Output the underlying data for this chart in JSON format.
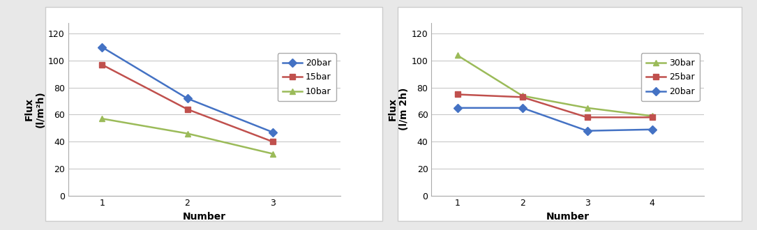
{
  "left": {
    "series": [
      {
        "label": "20bar",
        "x": [
          1,
          2,
          3
        ],
        "y": [
          110,
          72,
          47
        ],
        "color": "#4472C4",
        "marker": "D"
      },
      {
        "label": "15bar",
        "x": [
          1,
          2,
          3
        ],
        "y": [
          97,
          64,
          40
        ],
        "color": "#C0504D",
        "marker": "s"
      },
      {
        "label": "10bar",
        "x": [
          1,
          2,
          3
        ],
        "y": [
          57,
          46,
          31
        ],
        "color": "#9BBB59",
        "marker": "^"
      }
    ],
    "xlabel": "Number",
    "ylabel": "Flux\n(l/m²h)",
    "xlim": [
      0.6,
      3.8
    ],
    "ylim": [
      0,
      128
    ],
    "yticks": [
      0,
      20,
      40,
      60,
      80,
      100,
      120
    ],
    "xticks": [
      1,
      2,
      3
    ]
  },
  "right": {
    "series": [
      {
        "label": "30bar",
        "x": [
          1,
          2,
          3,
          4
        ],
        "y": [
          104,
          74,
          65,
          59
        ],
        "color": "#9BBB59",
        "marker": "^"
      },
      {
        "label": "25bar",
        "x": [
          1,
          2,
          3,
          4
        ],
        "y": [
          75,
          73,
          58,
          58
        ],
        "color": "#C0504D",
        "marker": "s"
      },
      {
        "label": "20bar",
        "x": [
          1,
          2,
          3,
          4
        ],
        "y": [
          65,
          65,
          48,
          49
        ],
        "color": "#4472C4",
        "marker": "D"
      }
    ],
    "xlabel": "Number",
    "ylabel": "Flux\n(l/m 2h)",
    "xlim": [
      0.6,
      4.8
    ],
    "ylim": [
      0,
      128
    ],
    "yticks": [
      0,
      20,
      40,
      60,
      80,
      100,
      120
    ],
    "xticks": [
      1,
      2,
      3,
      4
    ]
  },
  "outer_bg": "#E8E8E8",
  "inner_bg": "#FFFFFF",
  "grid_color": "#C8C8C8",
  "linewidth": 1.8,
  "markersize": 6,
  "tick_fontsize": 9,
  "label_fontsize": 10,
  "legend_fontsize": 9
}
